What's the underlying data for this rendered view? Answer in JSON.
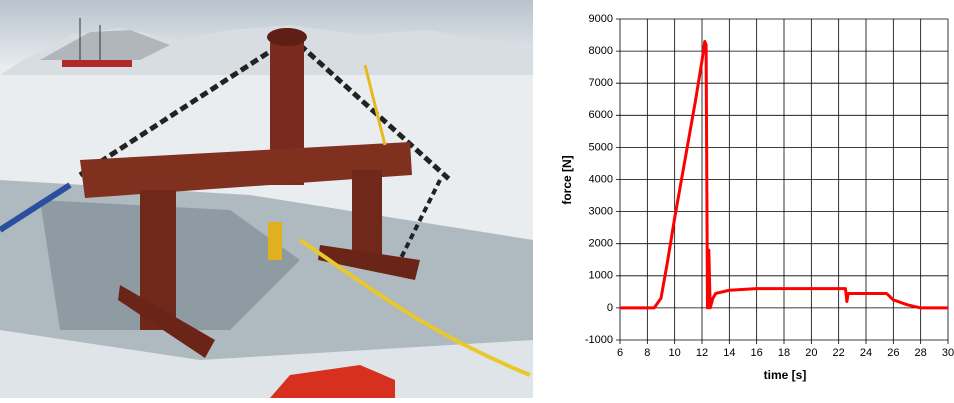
{
  "chart_data": {
    "type": "line",
    "xlabel": "time [s]",
    "ylabel": "force [N]",
    "x": [
      6,
      8,
      8.5,
      9,
      9.5,
      10,
      10.5,
      11,
      11.5,
      12,
      12.2,
      12.3,
      12.4,
      12.5,
      12.6,
      12.8,
      13,
      14,
      16,
      18,
      20,
      22,
      22.5,
      22.6,
      22.7,
      24,
      25.5,
      26,
      27,
      28,
      30
    ],
    "values": [
      0,
      0,
      0,
      300,
      1500,
      2800,
      4000,
      5200,
      6400,
      7700,
      8300,
      8200,
      0,
      1800,
      0,
      300,
      450,
      550,
      600,
      600,
      600,
      600,
      600,
      200,
      450,
      450,
      450,
      250,
      100,
      0,
      0
    ],
    "color": "#ff0000",
    "xlim": [
      6,
      30
    ],
    "xticks": [
      6,
      8,
      10,
      12,
      14,
      16,
      18,
      20,
      22,
      24,
      26,
      28,
      30
    ],
    "ylim": [
      -1000,
      9000
    ],
    "yticks": [
      -1000,
      0,
      1000,
      2000,
      3000,
      4000,
      5000,
      6000,
      7000,
      8000,
      9000
    ],
    "grid": true
  }
}
